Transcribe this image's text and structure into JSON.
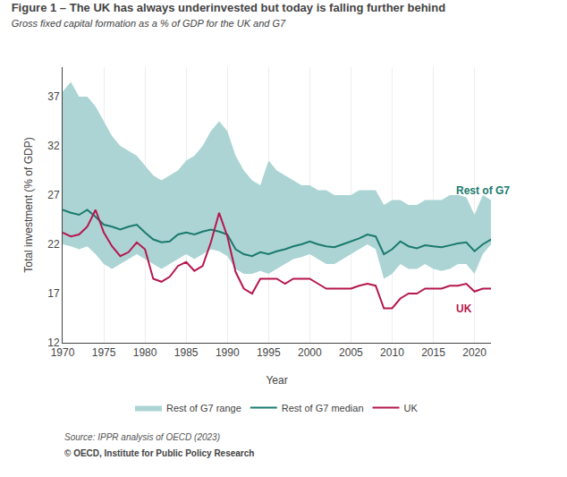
{
  "chart_data": {
    "type": "line",
    "title": "Figure 1 – The UK has always underinvested but today is falling further behind",
    "subtitle": "Gross fixed capital formation as a % of GDP for the UK and G7",
    "xlabel": "Year",
    "ylabel": "Total investment (% of GDP)",
    "source": "Source: IPPR analysis of OECD (2023)",
    "footer": "© OECD, Institute for Public Policy Research",
    "xlim": [
      1970,
      2022
    ],
    "xticks": [
      1970,
      1975,
      1980,
      1985,
      1990,
      1995,
      2000,
      2005,
      2010,
      2015,
      2020
    ],
    "ylim": [
      12,
      40
    ],
    "yticks": [
      12,
      17,
      22,
      27,
      32,
      37
    ],
    "grid": "x",
    "x": [
      1970,
      1971,
      1972,
      1973,
      1974,
      1975,
      1976,
      1977,
      1978,
      1979,
      1980,
      1981,
      1982,
      1983,
      1984,
      1985,
      1986,
      1987,
      1988,
      1989,
      1990,
      1991,
      1992,
      1993,
      1994,
      1995,
      1996,
      1997,
      1998,
      1999,
      2000,
      2001,
      2002,
      2003,
      2004,
      2005,
      2006,
      2007,
      2008,
      2009,
      2010,
      2011,
      2012,
      2013,
      2014,
      2015,
      2016,
      2017,
      2018,
      2019,
      2020,
      2021,
      2022
    ],
    "series": [
      {
        "name": "Rest of G7 range",
        "type": "range",
        "color": "#acd4d4",
        "low": [
          22.0,
          21.8,
          21.5,
          21.8,
          21.0,
          20.0,
          19.5,
          20.0,
          20.5,
          21.0,
          20.5,
          20.0,
          19.5,
          20.0,
          20.5,
          21.0,
          20.5,
          21.0,
          21.5,
          21.3,
          20.8,
          19.5,
          19.0,
          19.0,
          19.3,
          19.0,
          19.5,
          20.0,
          20.5,
          20.7,
          21.0,
          20.5,
          20.0,
          20.0,
          20.5,
          21.0,
          21.5,
          22.0,
          21.5,
          18.5,
          19.0,
          20.0,
          19.5,
          19.5,
          20.0,
          19.5,
          19.3,
          19.5,
          20.0,
          20.0,
          19.0,
          21.0,
          22.0
        ],
        "high": [
          37.5,
          38.5,
          37.0,
          37.0,
          36.0,
          34.5,
          33.0,
          32.0,
          31.5,
          31.0,
          30.0,
          29.0,
          28.5,
          29.0,
          29.5,
          30.5,
          31.0,
          32.0,
          33.5,
          34.5,
          33.5,
          31.0,
          29.5,
          28.5,
          28.0,
          30.5,
          29.5,
          29.0,
          28.5,
          28.0,
          28.0,
          27.5,
          27.5,
          27.0,
          27.0,
          27.0,
          27.5,
          27.5,
          27.5,
          26.0,
          26.5,
          26.5,
          26.0,
          26.0,
          26.5,
          26.5,
          26.5,
          27.0,
          27.0,
          26.8,
          25.0,
          27.0,
          26.5
        ]
      },
      {
        "name": "Rest of G7 median",
        "type": "line",
        "color": "#1a7a6e",
        "values": [
          25.5,
          25.2,
          25.0,
          25.5,
          24.8,
          24.0,
          23.8,
          23.5,
          23.8,
          24.0,
          23.2,
          22.5,
          22.2,
          22.3,
          23.0,
          23.2,
          23.0,
          23.3,
          23.5,
          23.3,
          23.0,
          21.5,
          21.0,
          20.8,
          21.2,
          21.0,
          21.3,
          21.5,
          21.8,
          22.0,
          22.3,
          22.0,
          21.8,
          21.7,
          22.0,
          22.3,
          22.6,
          23.0,
          22.8,
          21.0,
          21.5,
          22.3,
          21.8,
          21.6,
          21.9,
          21.8,
          21.7,
          21.9,
          22.1,
          22.2,
          21.3,
          22.0,
          22.5
        ]
      },
      {
        "name": "UK",
        "type": "line",
        "color": "#b5174e",
        "values": [
          23.2,
          22.8,
          23.0,
          23.8,
          25.5,
          23.2,
          21.8,
          20.8,
          21.2,
          22.2,
          21.5,
          18.5,
          18.2,
          18.7,
          19.8,
          20.2,
          19.3,
          19.8,
          22.2,
          25.2,
          22.8,
          19.2,
          17.5,
          17.0,
          18.5,
          18.5,
          18.5,
          18.0,
          18.5,
          18.5,
          18.5,
          18.0,
          17.5,
          17.5,
          17.5,
          17.5,
          17.8,
          18.0,
          17.8,
          15.5,
          15.5,
          16.5,
          17.0,
          17.0,
          17.5,
          17.5,
          17.5,
          17.8,
          17.8,
          18.0,
          17.2,
          17.5,
          17.5
        ]
      }
    ],
    "annotations": [
      {
        "text": "Rest of G7",
        "x": 2017.5,
        "y": 27.5,
        "color": "#1a7a6e"
      },
      {
        "text": "UK",
        "x": 2017.5,
        "y": 15.5,
        "color": "#b5174e"
      }
    ],
    "legend": "bottom"
  }
}
